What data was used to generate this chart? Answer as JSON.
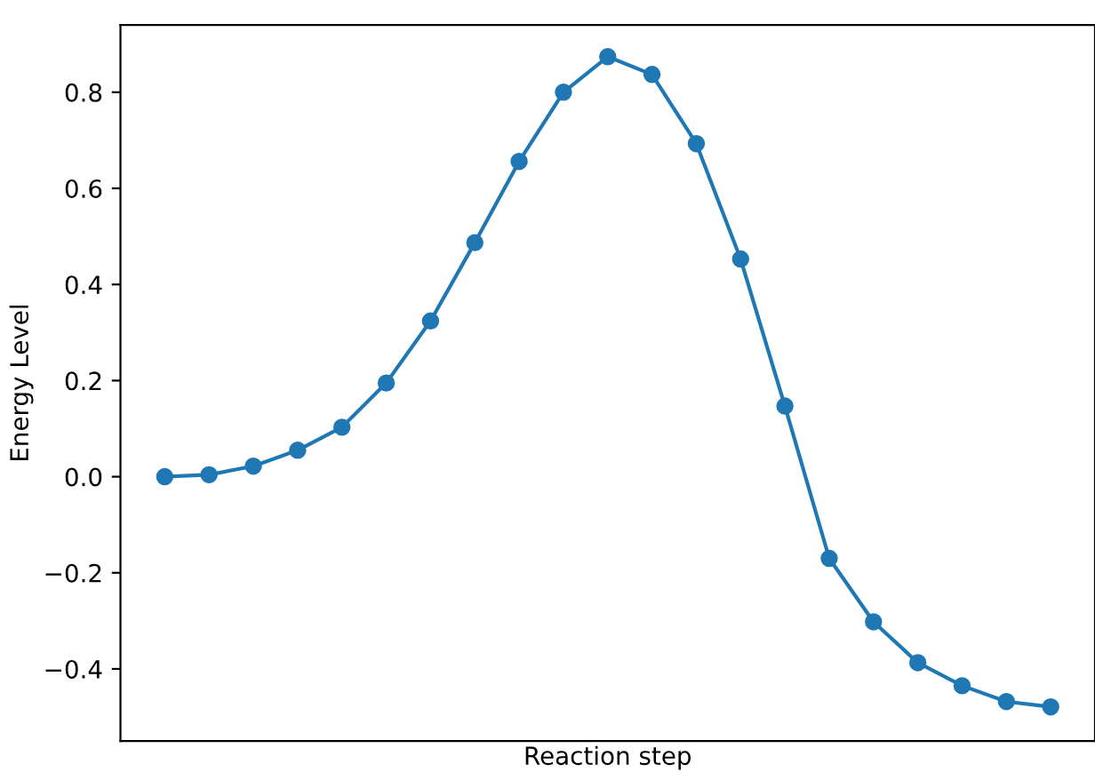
{
  "chart_data": {
    "type": "line",
    "xlabel": "Reaction step",
    "ylabel": "Energy Level",
    "categories": [
      null,
      null,
      null,
      null,
      null,
      null,
      null,
      null,
      null,
      null,
      null,
      null,
      null,
      null,
      null,
      null,
      null,
      null,
      null,
      null,
      null
    ],
    "series": [
      {
        "color": "#1f77b4",
        "values": [
          0.0,
          0.004,
          0.022,
          0.055,
          0.103,
          0.195,
          0.324,
          0.487,
          0.656,
          0.8,
          0.874,
          0.837,
          0.693,
          0.453,
          0.147,
          -0.17,
          -0.302,
          -0.387,
          -0.435,
          -0.468,
          -0.479
        ]
      }
    ],
    "ylim": [
      -0.55,
      0.94
    ],
    "yticks": [
      {
        "value": -0.4,
        "label": "−0.4"
      },
      {
        "value": -0.2,
        "label": "−0.2"
      },
      {
        "value": 0.0,
        "label": "0.0"
      },
      {
        "value": 0.2,
        "label": "0.2"
      },
      {
        "value": 0.4,
        "label": "0.4"
      },
      {
        "value": 0.6,
        "label": "0.6"
      },
      {
        "value": 0.8,
        "label": "0.8"
      }
    ],
    "tick_labels": "y",
    "marker": "circle",
    "line_style": "solid",
    "grid": false,
    "legend": false
  }
}
